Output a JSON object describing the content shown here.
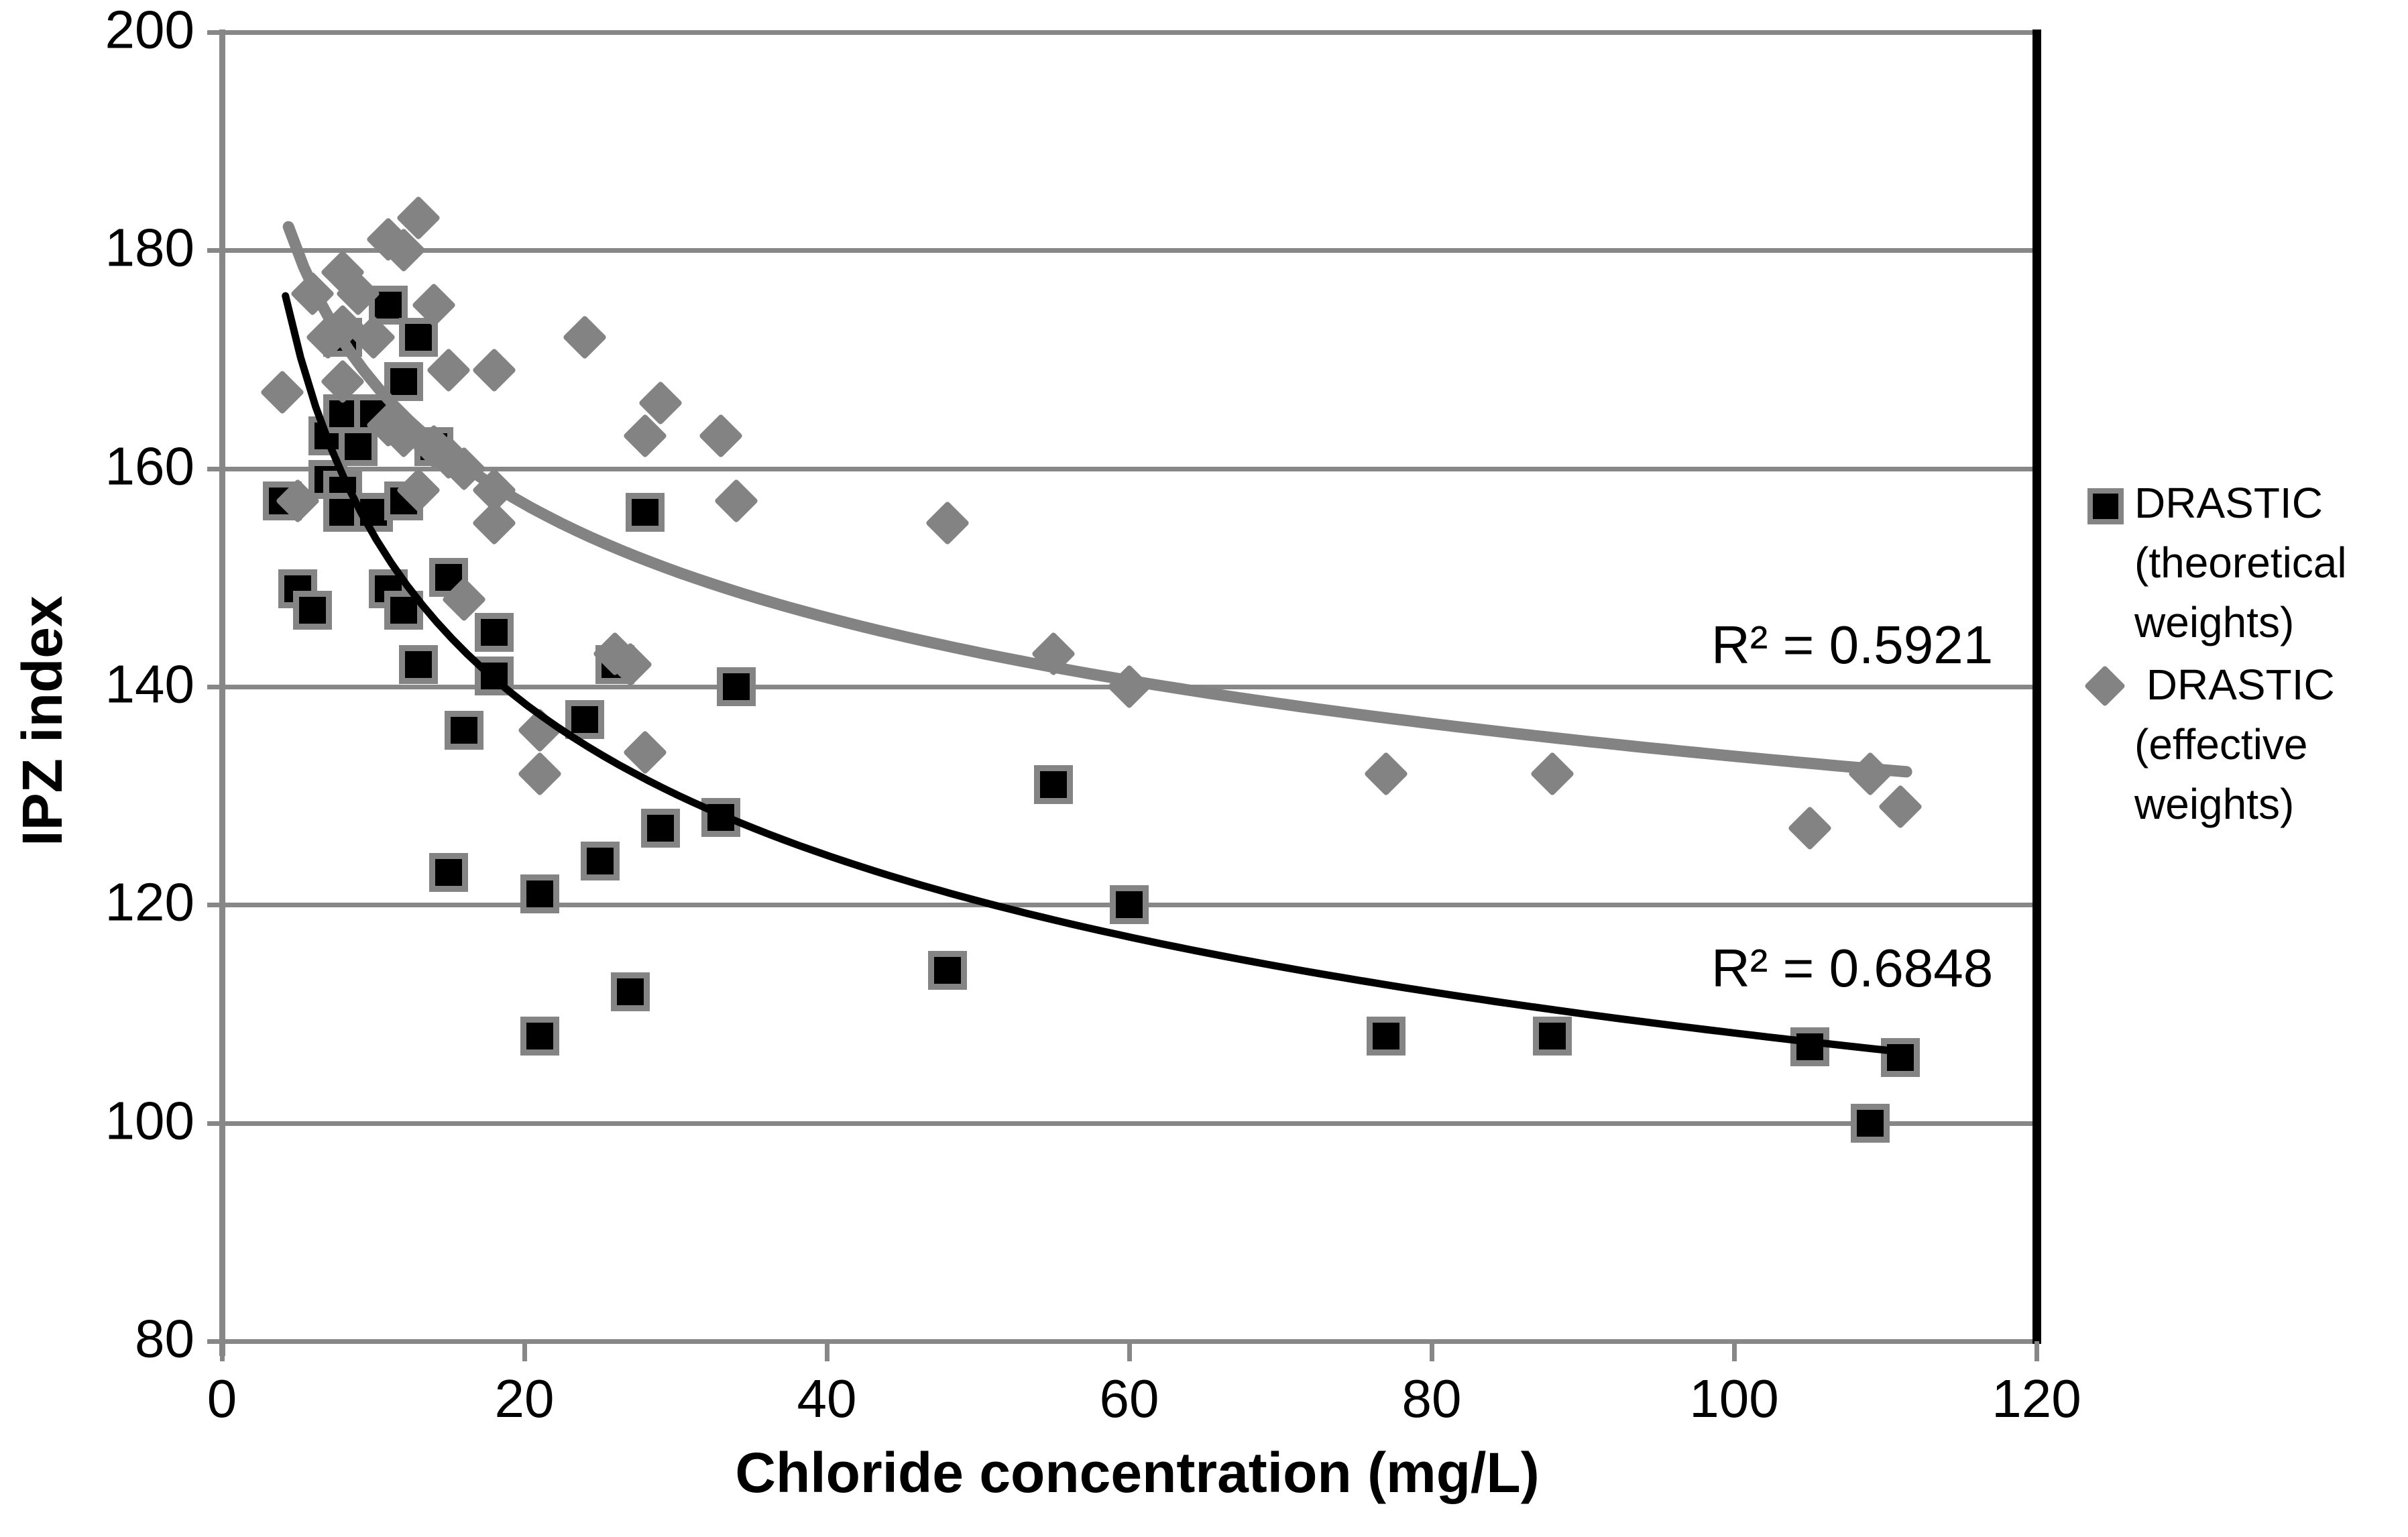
{
  "colors": {
    "series_black": "#000000",
    "series_gray": "#838383",
    "gridline": "#878787",
    "axis": "#878787",
    "plot_right_border": "#000000"
  },
  "y_axis": {
    "title": "IPZ index",
    "ticks": [
      200,
      180,
      160,
      140,
      120,
      100,
      80
    ],
    "min": 80,
    "max": 200
  },
  "x_axis": {
    "title": "Chloride concentration (mg/L)",
    "ticks": [
      0,
      20,
      40,
      60,
      80,
      100,
      120
    ],
    "min": 0,
    "max": 120
  },
  "legend": {
    "entries": [
      {
        "icon": "black-square-icon",
        "label": "DRASTIC (theoretical weights)",
        "lines": [
          "DRASTIC",
          "(theoretical",
          "weights)"
        ]
      },
      {
        "icon": "gray-diamond-icon",
        "label": "DRASTIC (effective weights)",
        "lines": [
          " DRASTIC",
          "(effective",
          "weights)"
        ]
      }
    ]
  },
  "annotations": {
    "r2_gray": "R² = 0.5921",
    "r2_black": "R² = 0.6848"
  },
  "chart_data": {
    "type": "scatter",
    "title": "",
    "xlabel": "Chloride concentration (mg/L)",
    "ylabel": "IPZ index",
    "xlim": [
      0,
      120
    ],
    "ylim": [
      80,
      200
    ],
    "grid": "horizontal",
    "legend_position": "right",
    "series": [
      {
        "name": "DRASTIC (theoretical weights)",
        "marker": "square",
        "color": "#000000",
        "r2": 0.6848,
        "trendline": {
          "type": "power",
          "coef": 219,
          "exp": -0.153,
          "x_start": 4.2,
          "x_end": 111.4
        },
        "points": [
          [
            4,
            157
          ],
          [
            5,
            149
          ],
          [
            6,
            147
          ],
          [
            7,
            163
          ],
          [
            7,
            159
          ],
          [
            8,
            172
          ],
          [
            8,
            165
          ],
          [
            8,
            158
          ],
          [
            8,
            156
          ],
          [
            9,
            162
          ],
          [
            10,
            165
          ],
          [
            10,
            156
          ],
          [
            11,
            175
          ],
          [
            11,
            149
          ],
          [
            12,
            168
          ],
          [
            12,
            157
          ],
          [
            12,
            147
          ],
          [
            13,
            172
          ],
          [
            13,
            142
          ],
          [
            14,
            162
          ],
          [
            15,
            150
          ],
          [
            15,
            123
          ],
          [
            16,
            136
          ],
          [
            18,
            145
          ],
          [
            18,
            141
          ],
          [
            21,
            121
          ],
          [
            21,
            108
          ],
          [
            24,
            137
          ],
          [
            25,
            124
          ],
          [
            26,
            142
          ],
          [
            27,
            112
          ],
          [
            28,
            156
          ],
          [
            29,
            127
          ],
          [
            33,
            128
          ],
          [
            34,
            140
          ],
          [
            48,
            114
          ],
          [
            55,
            131
          ],
          [
            60,
            120
          ],
          [
            77,
            108
          ],
          [
            88,
            108
          ],
          [
            105,
            107
          ],
          [
            109,
            100
          ],
          [
            111,
            106
          ]
        ]
      },
      {
        "name": "DRASTIC (effective weights)",
        "marker": "diamond",
        "color": "#838383",
        "r2": 0.5921,
        "trendline": {
          "type": "power",
          "coef": 211,
          "exp": -0.0992,
          "x_start": 4.4,
          "x_end": 111.5
        },
        "points": [
          [
            4,
            167
          ],
          [
            5,
            157
          ],
          [
            6,
            176
          ],
          [
            7,
            172
          ],
          [
            8,
            178
          ],
          [
            8,
            173
          ],
          [
            8,
            168
          ],
          [
            9,
            176
          ],
          [
            10,
            172
          ],
          [
            11,
            181
          ],
          [
            11,
            164
          ],
          [
            12,
            180
          ],
          [
            12,
            163
          ],
          [
            13,
            183
          ],
          [
            13,
            158
          ],
          [
            14,
            175
          ],
          [
            14,
            162
          ],
          [
            15,
            169
          ],
          [
            15,
            161
          ],
          [
            16,
            160
          ],
          [
            16,
            148
          ],
          [
            18,
            169
          ],
          [
            18,
            158
          ],
          [
            18,
            155
          ],
          [
            21,
            136
          ],
          [
            21,
            132
          ],
          [
            24,
            172
          ],
          [
            26,
            143
          ],
          [
            27,
            142
          ],
          [
            28,
            134
          ],
          [
            28,
            163
          ],
          [
            29,
            166
          ],
          [
            33,
            163
          ],
          [
            34,
            157
          ],
          [
            48,
            155
          ],
          [
            55,
            143
          ],
          [
            60,
            140
          ],
          [
            77,
            132
          ],
          [
            88,
            132
          ],
          [
            105,
            127
          ],
          [
            109,
            132
          ],
          [
            111,
            129
          ]
        ]
      }
    ]
  }
}
